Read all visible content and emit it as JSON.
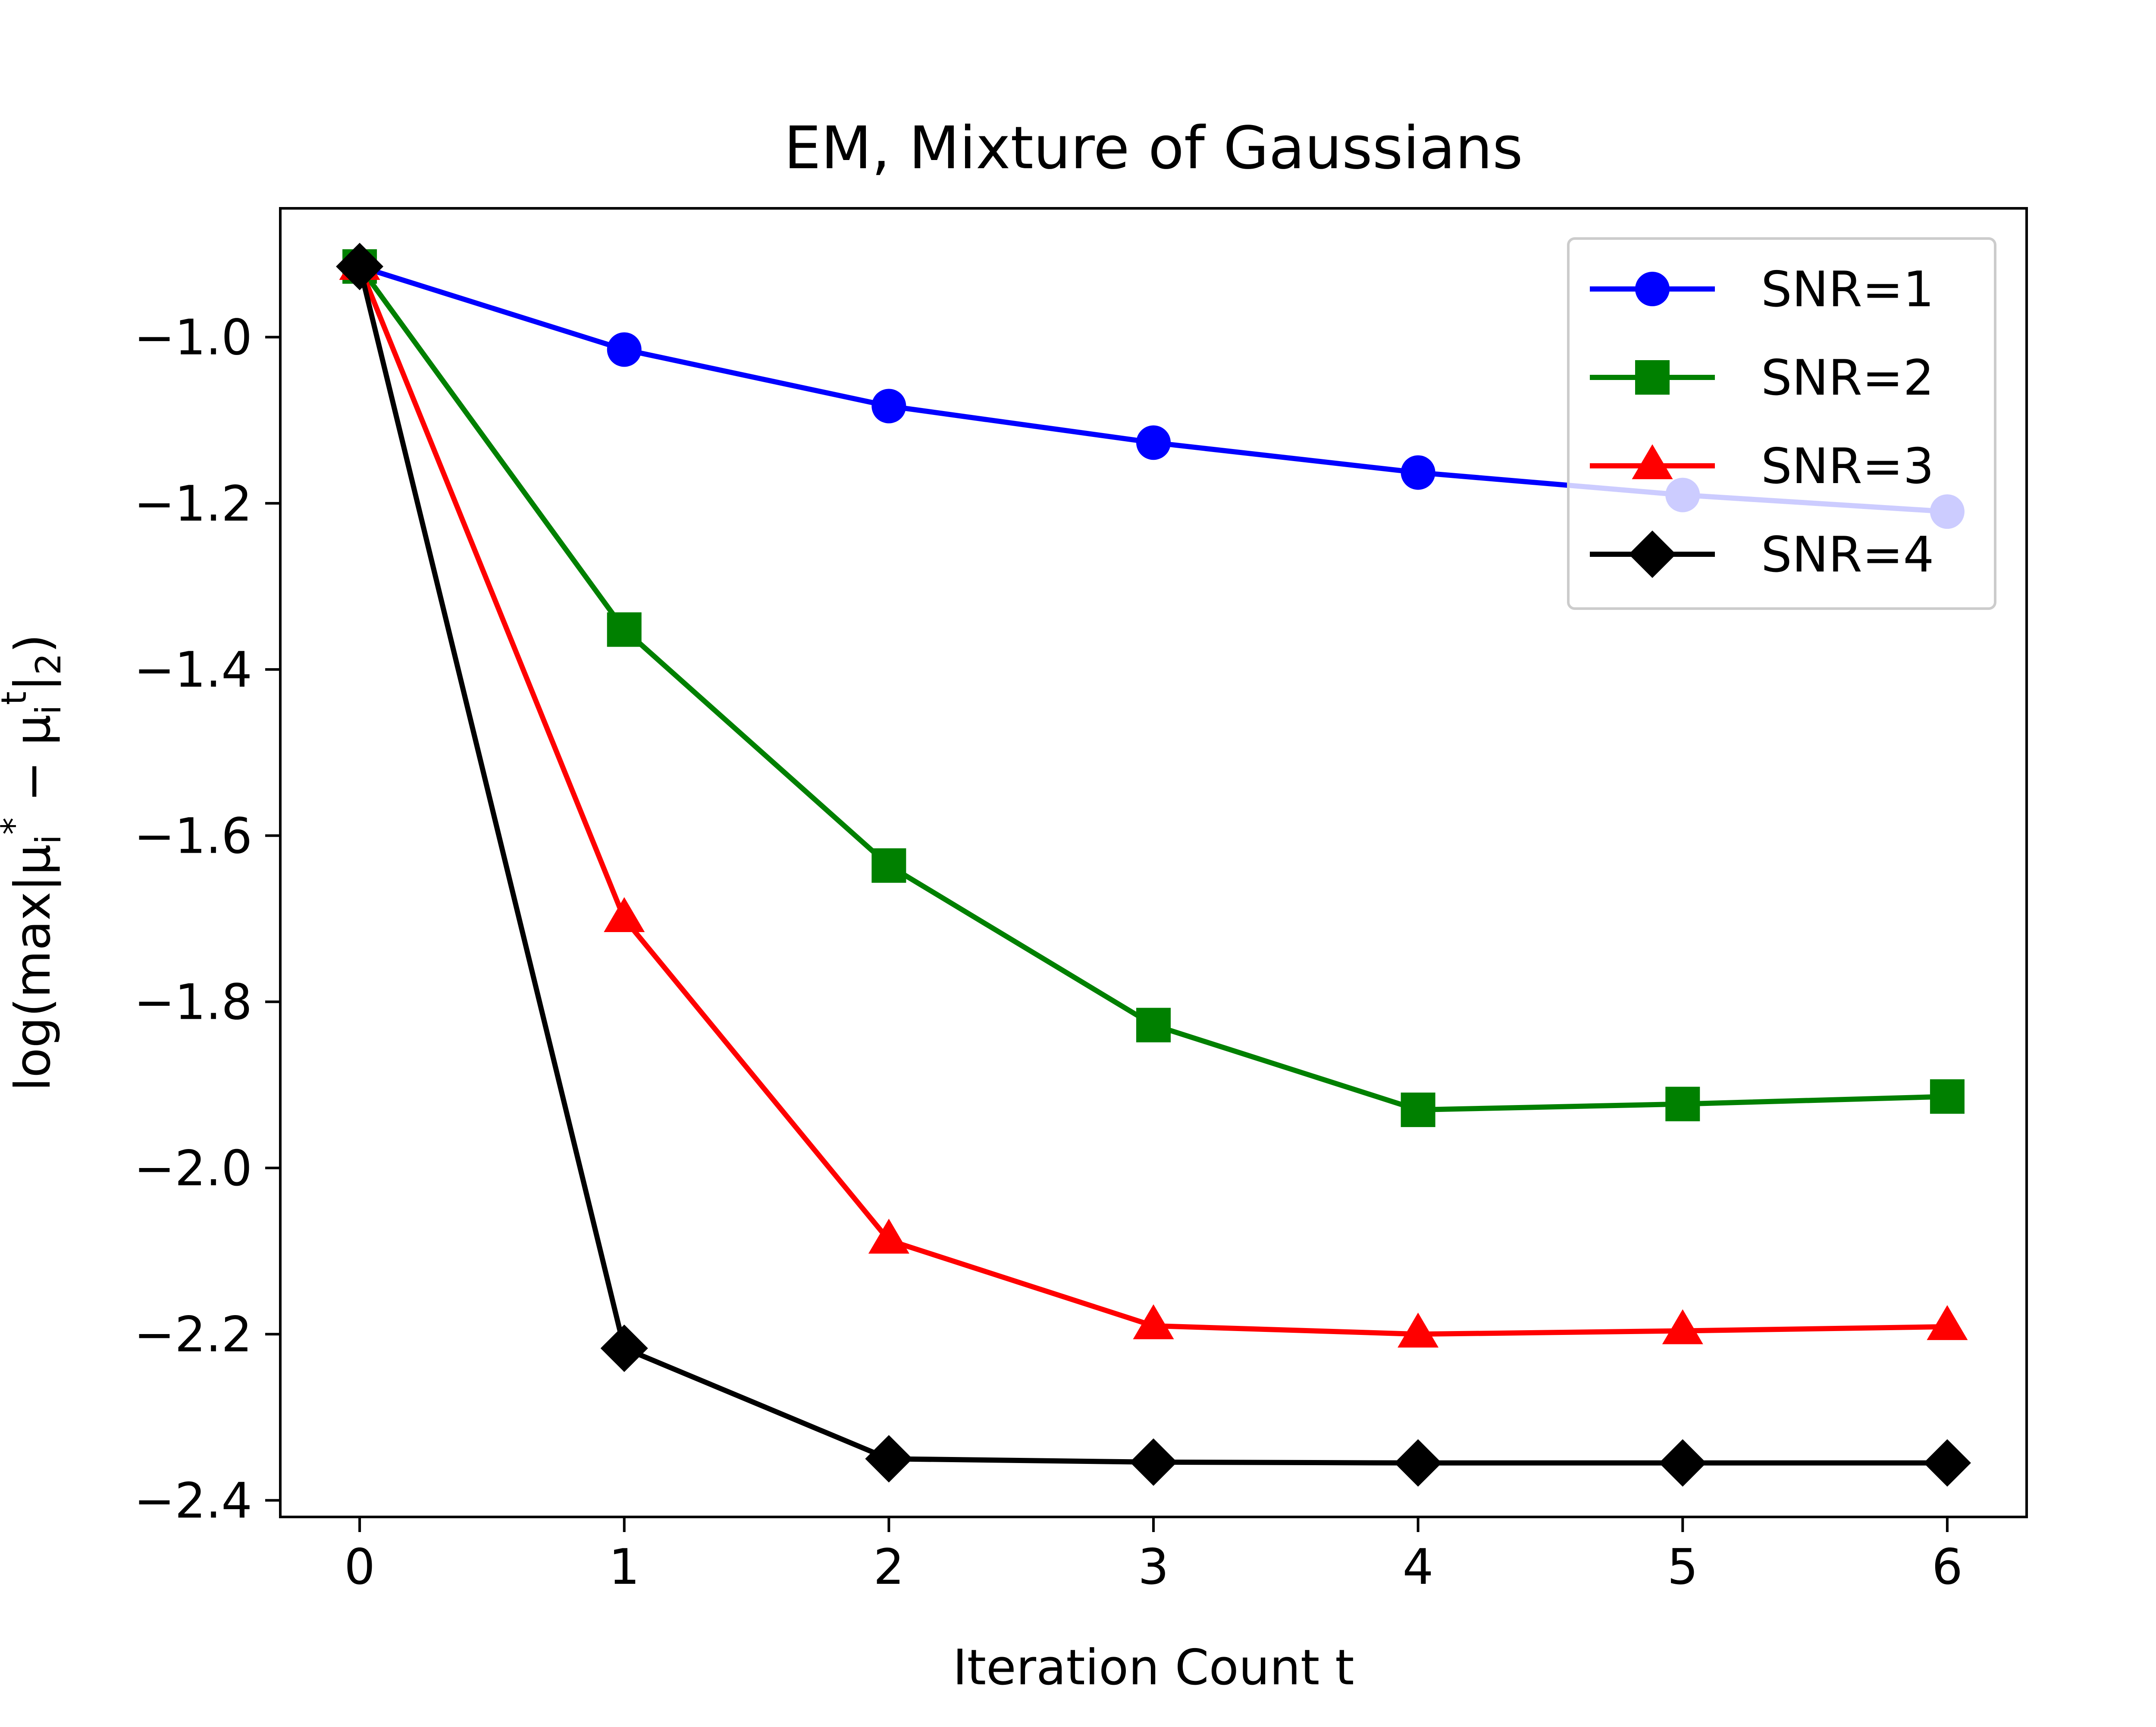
{
  "chart_data": {
    "type": "line",
    "title": "EM, Mixture of Gaussians",
    "xlabel": "Iteration Count t",
    "ylabel_parts": {
      "prefix": "log(max|μ",
      "sub_i_1": "i",
      "sup_star": "*",
      "minus": " − μ",
      "sub_i_2": "i",
      "sup_t": "t",
      "suffix": "|",
      "sub_2": "2",
      "close": ")"
    },
    "x": [
      0,
      1,
      2,
      3,
      4,
      5,
      6
    ],
    "xlim": [
      -0.3,
      6.3
    ],
    "ylim": [
      -2.42,
      -0.845
    ],
    "xticks": [
      0,
      1,
      2,
      3,
      4,
      5,
      6
    ],
    "xtick_labels": [
      "0",
      "1",
      "2",
      "3",
      "4",
      "5",
      "6"
    ],
    "yticks": [
      -2.4,
      -2.2,
      -2.0,
      -1.8,
      -1.6,
      -1.4,
      -1.2,
      -1.0
    ],
    "ytick_labels": [
      "−2.4",
      "−2.2",
      "−2.0",
      "−1.8",
      "−1.6",
      "−1.4",
      "−1.2",
      "−1.0"
    ],
    "grid": false,
    "legend_position": "top-right",
    "series": [
      {
        "name": "SNR=1",
        "color": "#0000ff",
        "marker": "circle",
        "values": [
          -0.915,
          -1.015,
          -1.083,
          -1.127,
          -1.163,
          -1.19,
          -1.21
        ]
      },
      {
        "name": "SNR=2",
        "color": "#008000",
        "marker": "square",
        "values": [
          -0.915,
          -1.352,
          -1.636,
          -1.828,
          -1.93,
          -1.923,
          -1.914
        ]
      },
      {
        "name": "SNR=3",
        "color": "#ff0000",
        "marker": "triangle",
        "values": [
          -0.915,
          -1.7,
          -2.087,
          -2.19,
          -2.2,
          -2.196,
          -2.191
        ]
      },
      {
        "name": "SNR=4",
        "color": "#000000",
        "marker": "diamond",
        "values": [
          -0.915,
          -2.217,
          -2.35,
          -2.354,
          -2.355,
          -2.355,
          -2.355
        ]
      }
    ]
  }
}
